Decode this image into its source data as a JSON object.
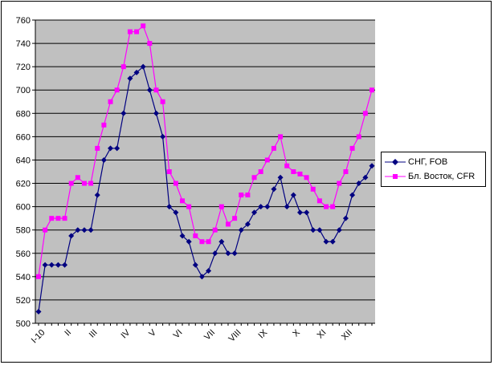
{
  "chart_data": {
    "type": "line",
    "ylim": [
      500,
      760
    ],
    "ystep": 20,
    "yticks": [
      "500",
      "520",
      "540",
      "560",
      "580",
      "600",
      "620",
      "640",
      "660",
      "680",
      "700",
      "720",
      "740",
      "760"
    ],
    "x_tick_labels": [
      {
        "label": "I-10",
        "index": 0
      },
      {
        "label": "II",
        "index": 4
      },
      {
        "label": "III",
        "index": 8
      },
      {
        "label": "IV",
        "index": 13
      },
      {
        "label": "V",
        "index": 17
      },
      {
        "label": "VI",
        "index": 21
      },
      {
        "label": "VII",
        "index": 26
      },
      {
        "label": "VIII",
        "index": 30
      },
      {
        "label": "IX",
        "index": 34
      },
      {
        "label": "X",
        "index": 39
      },
      {
        "label": "XI",
        "index": 43
      },
      {
        "label": "XII",
        "index": 47
      }
    ],
    "grid": true,
    "legend_position": "right",
    "plot_background": "#c0c0c0",
    "series": [
      {
        "name": "СНГ, FOB",
        "color": "#000080",
        "marker": "diamond",
        "values": [
          510,
          550,
          550,
          550,
          550,
          575,
          580,
          580,
          580,
          610,
          640,
          650,
          650,
          680,
          710,
          715,
          720,
          700,
          680,
          660,
          600,
          595,
          575,
          570,
          550,
          540,
          545,
          560,
          570,
          560,
          560,
          580,
          585,
          595,
          600,
          600,
          615,
          625,
          600,
          610,
          595,
          595,
          580,
          580,
          570,
          570,
          580,
          590,
          610,
          620,
          625,
          635
        ]
      },
      {
        "name": "Бл. Восток, CFR",
        "color": "#ff00ff",
        "marker": "square",
        "values": [
          540,
          580,
          590,
          590,
          590,
          620,
          625,
          620,
          620,
          650,
          670,
          690,
          700,
          720,
          750,
          750,
          755,
          740,
          700,
          690,
          630,
          620,
          605,
          600,
          575,
          570,
          570,
          580,
          600,
          585,
          590,
          610,
          610,
          625,
          630,
          640,
          650,
          660,
          635,
          630,
          628,
          625,
          615,
          605,
          600,
          600,
          620,
          630,
          650,
          660,
          680,
          700
        ]
      }
    ]
  }
}
